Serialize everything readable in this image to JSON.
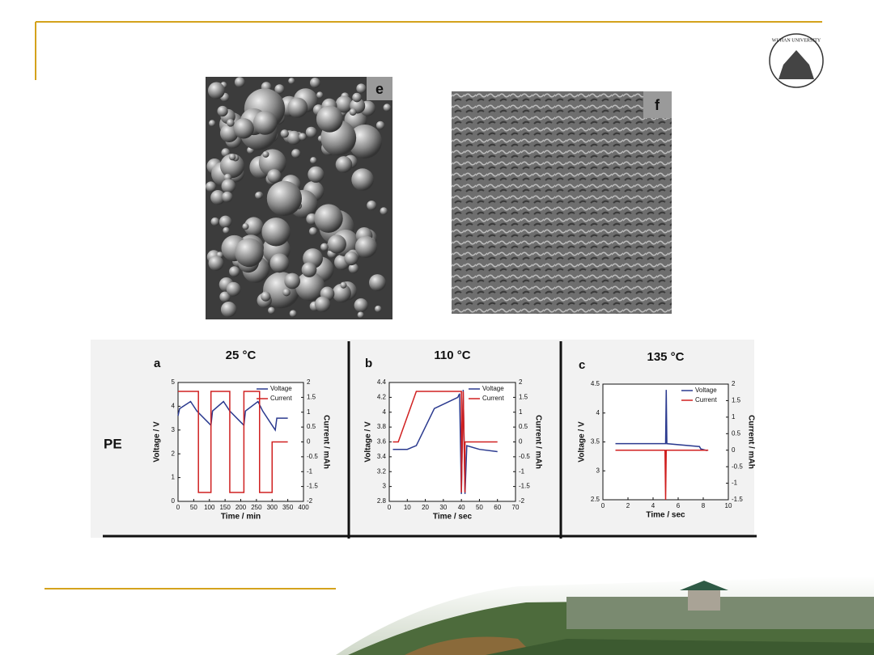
{
  "logo_text": "WUHAN UNIVERSITY",
  "image_labels": [
    "e",
    "f"
  ],
  "row_label": "PE",
  "chart_data": [
    {
      "type": "line",
      "panel_label": "a",
      "title": "25 °C",
      "x_label": "Time / min",
      "y_label": "Voltage / V",
      "y2_label": "Current / mAh",
      "xlim": [
        0,
        400
      ],
      "xticks": [
        0,
        50,
        100,
        150,
        200,
        250,
        300,
        350,
        400
      ],
      "ylim": [
        0,
        5
      ],
      "yticks": [
        0,
        1,
        2,
        3,
        4,
        5
      ],
      "y2lim": [
        -2,
        2
      ],
      "y2ticks": [
        -2,
        -1.5,
        -1,
        -0.5,
        0,
        0.5,
        1,
        1.5,
        2
      ],
      "legend": "upper right",
      "series": [
        {
          "name": "Voltage",
          "color": "#2b3a8f",
          "x": [
            0,
            5,
            40,
            60,
            90,
            105,
            110,
            145,
            165,
            195,
            210,
            215,
            255,
            270,
            300,
            310,
            315,
            350
          ],
          "values": [
            3.6,
            3.9,
            4.2,
            3.8,
            3.4,
            3.2,
            3.8,
            4.2,
            3.8,
            3.4,
            3.2,
            3.8,
            4.2,
            3.8,
            3.2,
            3.0,
            3.5,
            3.5
          ]
        },
        {
          "name": "Current",
          "color": "#d02020",
          "axis": "y2",
          "x": [
            0,
            65,
            65,
            105,
            105,
            165,
            165,
            210,
            210,
            260,
            260,
            300,
            300,
            350
          ],
          "values": [
            1.7,
            1.7,
            -1.7,
            -1.7,
            1.7,
            1.7,
            -1.7,
            -1.7,
            1.7,
            1.7,
            -1.7,
            -1.7,
            0,
            0
          ]
        }
      ]
    },
    {
      "type": "line",
      "panel_label": "b",
      "title": "110 °C",
      "x_label": "Time / sec",
      "y_label": "Voltage / V",
      "y2_label": "Current / mAh",
      "xlim": [
        0,
        70
      ],
      "xticks": [
        0,
        10,
        20,
        30,
        40,
        50,
        60,
        70
      ],
      "ylim": [
        2.8,
        4.4
      ],
      "yticks": [
        2.8,
        3,
        3.2,
        3.4,
        3.6,
        3.8,
        4,
        4.2,
        4.4
      ],
      "y2lim": [
        -2,
        2
      ],
      "y2ticks": [
        -2,
        -1.5,
        -1,
        -0.5,
        0,
        0.5,
        1,
        1.5,
        2
      ],
      "legend": "upper right",
      "series": [
        {
          "name": "Voltage",
          "color": "#2b3a8f",
          "x": [
            2,
            10,
            15,
            25,
            38,
            39,
            40,
            41,
            42,
            43,
            50,
            60
          ],
          "values": [
            3.5,
            3.5,
            3.55,
            4.05,
            4.2,
            4.25,
            2.9,
            4.3,
            2.9,
            3.55,
            3.5,
            3.47
          ]
        },
        {
          "name": "Current",
          "color": "#d02020",
          "axis": "y2",
          "x": [
            2,
            5,
            15,
            40,
            40,
            41,
            42,
            42,
            60
          ],
          "values": [
            0,
            0,
            1.7,
            1.7,
            -1.7,
            1.7,
            -1.7,
            0,
            0
          ]
        }
      ]
    },
    {
      "type": "line",
      "panel_label": "c",
      "title": "135 °C",
      "x_label": "Time / sec",
      "y_label": "Voltage / V",
      "y2_label": "Current / mAh",
      "xlim": [
        0,
        10
      ],
      "xticks": [
        0,
        2,
        4,
        6,
        8,
        10
      ],
      "ylim": [
        2.5,
        4.5
      ],
      "yticks": [
        2.5,
        3,
        3.5,
        4,
        4.5
      ],
      "y2lim": [
        -1.5,
        2
      ],
      "y2ticks": [
        -1.5,
        -1,
        -0.5,
        0,
        0.5,
        1,
        1.5,
        2
      ],
      "legend": "upper right",
      "series": [
        {
          "name": "Voltage",
          "color": "#2b3a8f",
          "x": [
            1,
            5,
            5.05,
            5.1,
            7.7,
            7.8,
            8.3
          ],
          "values": [
            3.47,
            3.47,
            4.4,
            3.47,
            3.42,
            3.38,
            3.35
          ]
        },
        {
          "name": "Current",
          "color": "#d02020",
          "axis": "y2",
          "x": [
            1,
            4.95,
            5,
            5.05,
            8.4
          ],
          "values": [
            0,
            0,
            -1.5,
            0,
            0
          ]
        }
      ]
    }
  ]
}
